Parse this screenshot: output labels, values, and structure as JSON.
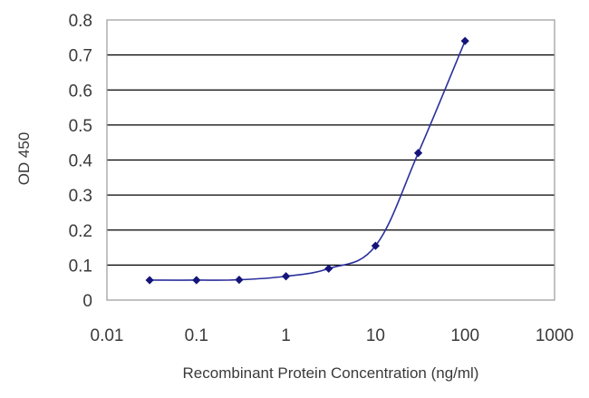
{
  "chart_data": {
    "type": "line",
    "title": "",
    "xlabel": "Recombinant Protein Concentration (ng/ml)",
    "ylabel": "OD 450",
    "x_scale": "log",
    "xlim": [
      0.01,
      1000
    ],
    "ylim": [
      0,
      0.8
    ],
    "x_ticks": [
      "0.01",
      "0.1",
      "1",
      "10",
      "100",
      "1000"
    ],
    "y_ticks": [
      "0",
      "0.1",
      "0.2",
      "0.3",
      "0.4",
      "0.5",
      "0.6",
      "0.7",
      "0.8"
    ],
    "grid": "horizontal",
    "series": [
      {
        "x": [
          0.03,
          0.1,
          0.3,
          1,
          3,
          10,
          30,
          100
        ],
        "y": [
          0.057,
          0.057,
          0.058,
          0.068,
          0.09,
          0.155,
          0.42,
          0.74
        ]
      }
    ],
    "colors": {
      "line": "#2b2f9c",
      "marker": "#14147a",
      "grid": "#000000",
      "frame": "#9a9a9a"
    }
  }
}
